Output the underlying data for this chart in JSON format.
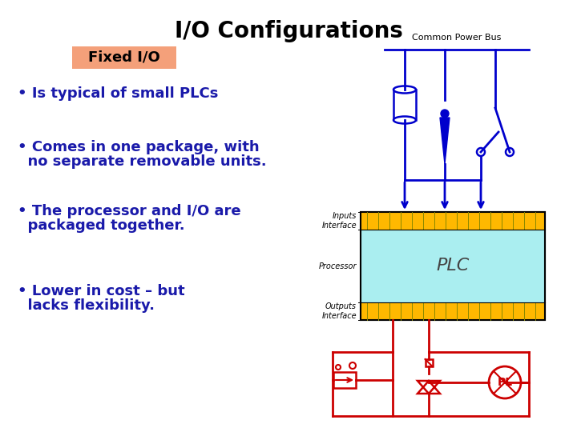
{
  "title": "I/O Configurations",
  "title_fontsize": 20,
  "title_color": "#000000",
  "background_color": "#ffffff",
  "label_text": "Fixed I/O",
  "label_bg": "#f4a07a",
  "label_fontsize": 13,
  "bullet_color": "#1a1aaa",
  "bullet_fontsize": 13,
  "bullets": [
    [
      "• Is typical of small PLCs",
      ""
    ],
    [
      "• Comes in one package, with",
      "  no separate removable units."
    ],
    [
      "• The processor and I/O are",
      "  packaged together."
    ],
    [
      "• Lower in cost – but",
      "  lacks flexibility."
    ]
  ],
  "diagram_text_color": "#000000",
  "plc_fill": "#aaeef0",
  "plc_text": "PLC",
  "io_bar_color": "#FFB800",
  "dark_bar_color": "#0a0a30",
  "blue_line_color": "#0000cc",
  "red_line_color": "#cc0000",
  "common_power_bus_label": "Common Power Bus",
  "inputs_label": "Inputs\nInterface",
  "processor_label": "Processor",
  "outputs_label": "Outputs\nInterface"
}
